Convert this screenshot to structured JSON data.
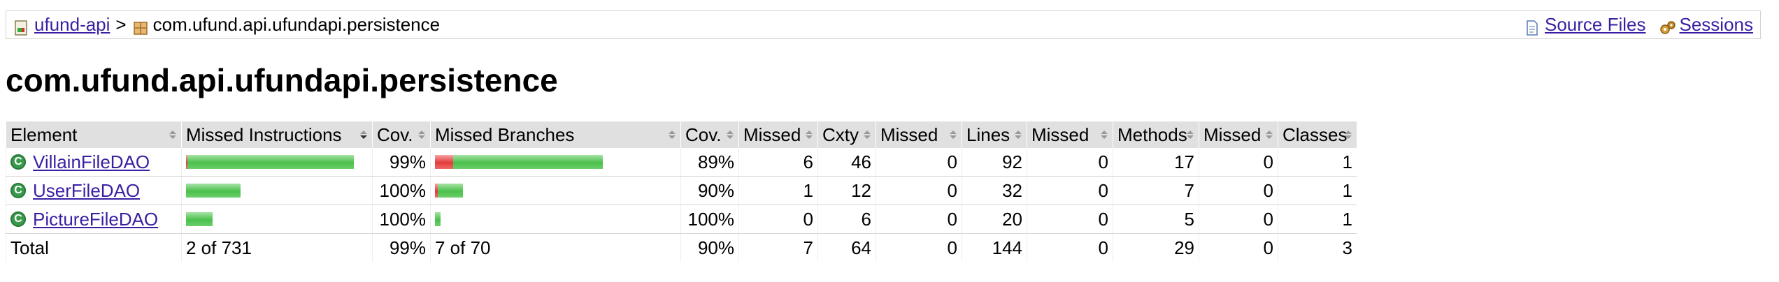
{
  "breadcrumb": {
    "project": "ufund-api",
    "separator": ">",
    "package": "com.ufund.api.ufundapi.persistence",
    "source_files": "Source Files",
    "sessions": "Sessions"
  },
  "page_title": "com.ufund.api.ufundapi.persistence",
  "table": {
    "headers": [
      "Element",
      "Missed Instructions",
      "Cov.",
      "Missed Branches",
      "Cov.",
      "Missed",
      "Cxty",
      "Missed",
      "Lines",
      "Missed",
      "Methods",
      "Missed",
      "Classes"
    ],
    "rows": [
      {
        "name": "VillainFileDAO",
        "instr_coverage": 0.99,
        "instr_cov": "99%",
        "branch_missed_fraction": 0.11,
        "branch_cov": "89%",
        "cxty_missed": "6",
        "cxty": "46",
        "lines_missed": "0",
        "lines": "92",
        "methods_missed": "0",
        "methods": "17",
        "classes_missed": "0",
        "classes": "1"
      },
      {
        "name": "UserFileDAO",
        "instr_coverage": 1.0,
        "instr_cov": "100%",
        "branch_missed_fraction": 0.1,
        "branch_cov": "90%",
        "cxty_missed": "1",
        "cxty": "12",
        "lines_missed": "0",
        "lines": "32",
        "methods_missed": "0",
        "methods": "7",
        "classes_missed": "0",
        "classes": "1"
      },
      {
        "name": "PictureFileDAO",
        "instr_coverage": 1.0,
        "instr_cov": "100%",
        "branch_missed_fraction": 0.0,
        "branch_cov": "100%",
        "cxty_missed": "0",
        "cxty": "6",
        "lines_missed": "0",
        "lines": "20",
        "methods_missed": "0",
        "methods": "5",
        "classes_missed": "0",
        "classes": "1"
      }
    ],
    "total": {
      "label": "Total",
      "instr": "2 of 731",
      "instr_cov": "99%",
      "branch": "7 of 70",
      "branch_cov": "90%",
      "cxty_missed": "7",
      "cxty": "64",
      "lines_missed": "0",
      "lines": "144",
      "methods_missed": "0",
      "methods": "29",
      "classes_missed": "0",
      "classes": "3"
    }
  },
  "colors": {
    "covered": "#4bc04b",
    "missed": "#e23b3b",
    "link": "#3b1fa3",
    "header_bg": "#e0e0e0"
  }
}
